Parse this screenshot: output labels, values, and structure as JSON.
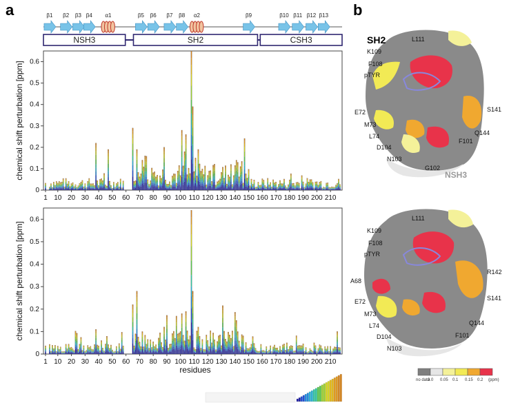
{
  "panels": {
    "a": "a",
    "b": "b"
  },
  "secondary_structure": [
    {
      "type": "strand",
      "label": "β1"
    },
    {
      "type": "strand",
      "label": "β2"
    },
    {
      "type": "strand",
      "label": "β3"
    },
    {
      "type": "strand",
      "label": "β4"
    },
    {
      "type": "helix",
      "label": "α1"
    },
    {
      "type": "strand",
      "label": "β5"
    },
    {
      "type": "strand",
      "label": "β6"
    },
    {
      "type": "strand",
      "label": "β7"
    },
    {
      "type": "strand",
      "label": "β8"
    },
    {
      "type": "helix",
      "label": "α2"
    },
    {
      "type": "strand",
      "label": "β9"
    },
    {
      "type": "strand",
      "label": "β10"
    },
    {
      "type": "strand",
      "label": "β11"
    },
    {
      "type": "strand",
      "label": "β12"
    },
    {
      "type": "strand",
      "label": "β13"
    }
  ],
  "domains": [
    {
      "label": "NSH3",
      "start": 1,
      "end": 58
    },
    {
      "label": "SH2",
      "start": 67,
      "end": 155
    },
    {
      "label": "CSH3",
      "start": 160,
      "end": 217
    }
  ],
  "chart_data": [
    {
      "type": "bar",
      "stacked_gradient": true,
      "ylabel": "chemical shift perturbation [ppm]",
      "ylim": [
        0,
        0.65
      ],
      "yticks": [
        "0",
        "0.1",
        "0.2",
        "0.3",
        "0.4",
        "0.5",
        "0.6"
      ],
      "xlim": [
        1,
        217
      ],
      "xticks": [
        "1",
        "10",
        "20",
        "30",
        "40",
        "50",
        "60",
        "70",
        "80",
        "90",
        "100",
        "110",
        "120",
        "130",
        "140",
        "150",
        "160",
        "170",
        "180",
        "190",
        "200",
        "210"
      ],
      "peaks": [
        {
          "x": 38,
          "y": 0.22
        },
        {
          "x": 47,
          "y": 0.19
        },
        {
          "x": 65,
          "y": 0.29
        },
        {
          "x": 68,
          "y": 0.19
        },
        {
          "x": 72,
          "y": 0.14
        },
        {
          "x": 74,
          "y": 0.16
        },
        {
          "x": 88,
          "y": 0.2
        },
        {
          "x": 101,
          "y": 0.28
        },
        {
          "x": 103,
          "y": 0.18
        },
        {
          "x": 104,
          "y": 0.26
        },
        {
          "x": 108,
          "y": 0.65
        },
        {
          "x": 109,
          "y": 0.39
        },
        {
          "x": 111,
          "y": 0.15
        },
        {
          "x": 113,
          "y": 0.19
        },
        {
          "x": 141,
          "y": 0.14
        },
        {
          "x": 142,
          "y": 0.13
        },
        {
          "x": 144,
          "y": 0.11
        }
      ],
      "baseline_level": 0.03
    },
    {
      "type": "bar",
      "stacked_gradient": true,
      "ylabel": "chemical shift perturbation [ppm]",
      "xlabel": "residues",
      "ylim": [
        0,
        0.65
      ],
      "yticks": [
        "0",
        "0.1",
        "0.2",
        "0.3",
        "0.4",
        "0.5",
        "0.6"
      ],
      "xlim": [
        1,
        217
      ],
      "xticks": [
        "1",
        "10",
        "20",
        "30",
        "40",
        "50",
        "60",
        "70",
        "80",
        "90",
        "100",
        "110",
        "120",
        "130",
        "140",
        "150",
        "160",
        "170",
        "180",
        "190",
        "200",
        "210"
      ],
      "peaks": [
        {
          "x": 38,
          "y": 0.11
        },
        {
          "x": 42,
          "y": 0.06
        },
        {
          "x": 65,
          "y": 0.22
        },
        {
          "x": 68,
          "y": 0.28
        },
        {
          "x": 72,
          "y": 0.1
        },
        {
          "x": 88,
          "y": 0.12
        },
        {
          "x": 101,
          "y": 0.18
        },
        {
          "x": 104,
          "y": 0.19
        },
        {
          "x": 108,
          "y": 0.64
        },
        {
          "x": 109,
          "y": 0.28
        },
        {
          "x": 113,
          "y": 0.12
        },
        {
          "x": 141,
          "y": 0.15
        },
        {
          "x": 142,
          "y": 0.1
        },
        {
          "x": 178,
          "y": 0.05
        },
        {
          "x": 198,
          "y": 0.05
        }
      ],
      "baseline_level": 0.025
    }
  ],
  "gradient_colors": [
    "#1b1ba6",
    "#1f4fd6",
    "#1f8be0",
    "#26b3d6",
    "#2fc7a0",
    "#57c84a",
    "#9dd22e",
    "#d6d61f",
    "#e5b919",
    "#e39a1c",
    "#d9861e"
  ],
  "panel_b": {
    "top": {
      "domain_labels": [
        "SH2",
        "NSH3"
      ],
      "residue_labels": [
        "L111",
        "K109",
        "F108",
        "pTYR",
        "E72",
        "M73",
        "L74",
        "D104",
        "N103",
        "G102",
        "F101",
        "Q144",
        "S141"
      ]
    },
    "bottom": {
      "residue_labels": [
        "L111",
        "K109",
        "F108",
        "pTYR",
        "A68",
        "E72",
        "M73",
        "L74",
        "D104",
        "N103",
        "F101",
        "Q144",
        "S141",
        "R142"
      ]
    },
    "color_scale": {
      "labels": [
        "no data",
        "0.0",
        "0.05",
        "0.1",
        "0.15",
        "0.2",
        "(ppm)"
      ],
      "colors": [
        "#7f7f7f",
        "#e6e6e6",
        "#f4f199",
        "#f2ea55",
        "#f0a830",
        "#e8334a"
      ]
    }
  }
}
